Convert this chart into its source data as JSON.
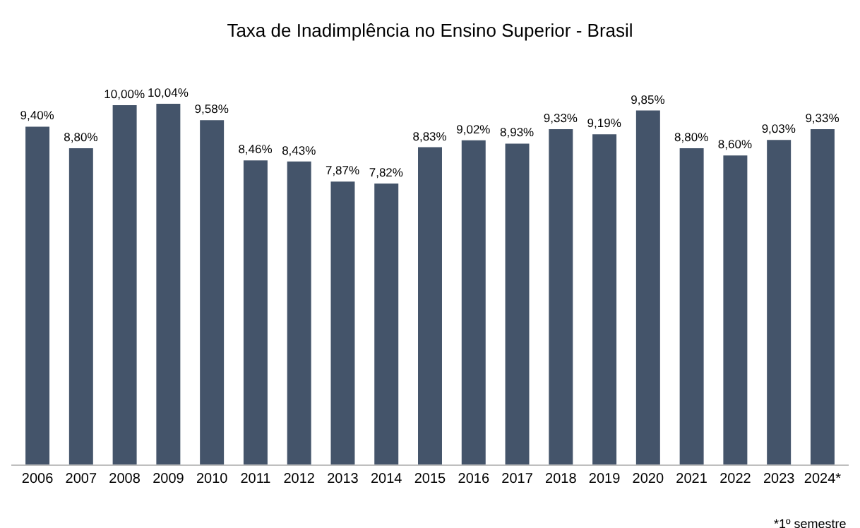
{
  "chart_data": {
    "type": "bar",
    "title": "Taxa de Inadimplência no Ensino Superior - Brasil",
    "categories": [
      "2006",
      "2007",
      "2008",
      "2009",
      "2010",
      "2011",
      "2012",
      "2013",
      "2014",
      "2015",
      "2016",
      "2017",
      "2018",
      "2019",
      "2020",
      "2021",
      "2022",
      "2023",
      "2024*"
    ],
    "values": [
      9.4,
      8.8,
      10.0,
      10.04,
      9.58,
      8.46,
      8.43,
      7.87,
      7.82,
      8.83,
      9.02,
      8.93,
      9.33,
      9.19,
      9.85,
      8.8,
      8.6,
      9.03,
      9.33
    ],
    "value_labels": [
      "9,40%",
      "8,80%",
      "10,00%",
      "10,04%",
      "9,58%",
      "8,46%",
      "8,43%",
      "7,87%",
      "7,82%",
      "8,83%",
      "9,02%",
      "8,93%",
      "9,33%",
      "9,19%",
      "9,85%",
      "8,80%",
      "8,60%",
      "9,03%",
      "9,33%"
    ],
    "color": "#44546a",
    "annotations": [
      "*1º semestre"
    ],
    "grid": false,
    "legend": false
  }
}
